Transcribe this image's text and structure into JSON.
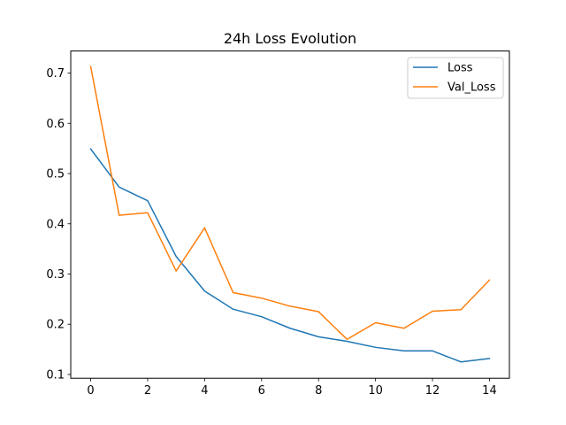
{
  "chart_data": {
    "type": "line",
    "title": "24h Loss Evolution",
    "xlabel": "",
    "ylabel": "",
    "x": [
      0,
      1,
      2,
      3,
      4,
      5,
      6,
      7,
      8,
      9,
      10,
      11,
      12,
      13,
      14
    ],
    "xlim": [
      -0.7,
      14.7
    ],
    "ylim": [
      0.0925,
      0.744
    ],
    "xticks": [
      0,
      2,
      4,
      6,
      8,
      10,
      12,
      14
    ],
    "yticks": [
      0.1,
      0.2,
      0.3,
      0.4,
      0.5,
      0.6,
      0.7
    ],
    "xtick_labels": [
      "0",
      "2",
      "4",
      "6",
      "8",
      "10",
      "12",
      "14"
    ],
    "ytick_labels": [
      "0.1",
      "0.2",
      "0.3",
      "0.4",
      "0.5",
      "0.6",
      "0.7"
    ],
    "grid": false,
    "legend_position": "top-right",
    "series": [
      {
        "name": "Loss",
        "color": "#1f77b4",
        "values": [
          0.549,
          0.473,
          0.446,
          0.335,
          0.266,
          0.23,
          0.215,
          0.192,
          0.175,
          0.166,
          0.154,
          0.147,
          0.147,
          0.125,
          0.132
        ]
      },
      {
        "name": "Val_Loss",
        "color": "#ff7f0e",
        "values": [
          0.713,
          0.417,
          0.422,
          0.306,
          0.392,
          0.263,
          0.252,
          0.236,
          0.225,
          0.17,
          0.203,
          0.192,
          0.226,
          0.229,
          0.288
        ]
      }
    ]
  }
}
